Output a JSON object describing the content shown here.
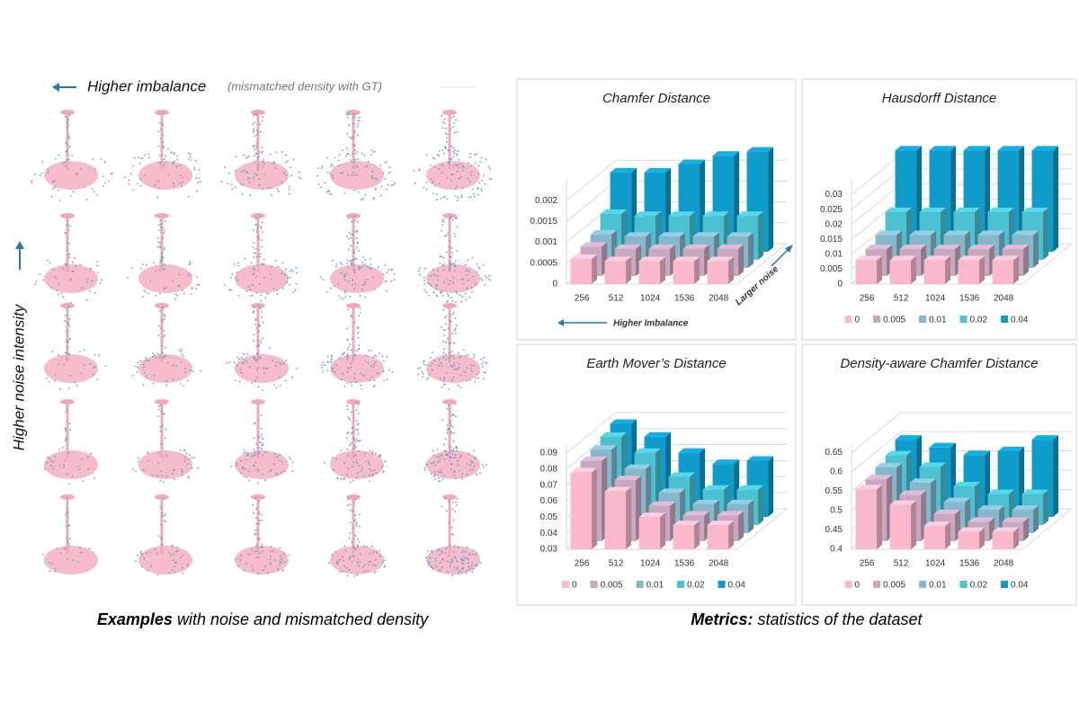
{
  "figure": {
    "imbalance_label": "Higher imbalance",
    "imbalance_note": "(mismatched density with GT)",
    "noise_label": "Higher noise intensity",
    "caption_bold": "Examples",
    "caption_rest": "with noise and mismatched density"
  },
  "metrics_caption": {
    "bold": "Metrics:",
    "rest": "statistics of the dataset"
  },
  "chart_data": [
    {
      "type": "bar",
      "title": "Chamfer Distance",
      "categories": [
        "256",
        "512",
        "1024",
        "1536",
        "2048"
      ],
      "series": [
        {
          "name": "0",
          "color": "#f9b8cb",
          "values": [
            0.0006,
            0.00055,
            0.00055,
            0.00055,
            0.00055
          ]
        },
        {
          "name": "0.005",
          "color": "#c9a8c2",
          "values": [
            0.0007,
            0.00065,
            0.00065,
            0.00065,
            0.00065
          ]
        },
        {
          "name": "0.01",
          "color": "#86b8cc",
          "values": [
            0.0008,
            0.00075,
            0.00075,
            0.00075,
            0.00075
          ]
        },
        {
          "name": "0.02",
          "color": "#4cc1d2",
          "values": [
            0.0011,
            0.00105,
            0.00105,
            0.00105,
            0.00105
          ]
        },
        {
          "name": "0.04",
          "color": "#0f9ccb",
          "values": [
            0.0019,
            0.0019,
            0.0021,
            0.0023,
            0.0024
          ]
        }
      ],
      "ylim": [
        0,
        0.0025
      ],
      "yticks": [
        0,
        0.0005,
        0.001,
        0.0015,
        0.002
      ],
      "grid": true,
      "x_annotation": "Higher Imbalance",
      "depth_annotation": "Larger noise"
    },
    {
      "type": "bar",
      "title": "Hausdorff Distance",
      "categories": [
        "256",
        "512",
        "1024",
        "1536",
        "2048"
      ],
      "series": [
        {
          "name": "0",
          "color": "#f9b8cb",
          "values": [
            0.008,
            0.008,
            0.008,
            0.008,
            0.008
          ]
        },
        {
          "name": "0.005",
          "color": "#c9a8c2",
          "values": [
            0.009,
            0.009,
            0.009,
            0.009,
            0.009
          ]
        },
        {
          "name": "0.01",
          "color": "#86b8cc",
          "values": [
            0.011,
            0.011,
            0.011,
            0.011,
            0.011
          ]
        },
        {
          "name": "0.02",
          "color": "#4cc1d2",
          "values": [
            0.016,
            0.016,
            0.016,
            0.016,
            0.016
          ]
        },
        {
          "name": "0.04",
          "color": "#0f9ccb",
          "values": [
            0.034,
            0.034,
            0.034,
            0.034,
            0.034
          ]
        }
      ],
      "ylim": [
        0,
        0.035
      ],
      "yticks": [
        0,
        0.005,
        0.01,
        0.015,
        0.02,
        0.025,
        0.03
      ],
      "grid": true,
      "legend": "bottom"
    },
    {
      "type": "bar",
      "title": "Earth Mover’s Distance",
      "categories": [
        "256",
        "512",
        "1024",
        "1536",
        "2048"
      ],
      "series": [
        {
          "name": "0",
          "color": "#f9b8cb",
          "values": [
            0.078,
            0.066,
            0.05,
            0.045,
            0.045
          ]
        },
        {
          "name": "0.005",
          "color": "#c9a8c2",
          "values": [
            0.08,
            0.068,
            0.052,
            0.046,
            0.046
          ]
        },
        {
          "name": "0.01",
          "color": "#86b8cc",
          "values": [
            0.082,
            0.07,
            0.055,
            0.048,
            0.048
          ]
        },
        {
          "name": "0.02",
          "color": "#4cc1d2",
          "values": [
            0.085,
            0.075,
            0.06,
            0.052,
            0.052
          ]
        },
        {
          "name": "0.04",
          "color": "#0f9ccb",
          "values": [
            0.088,
            0.08,
            0.07,
            0.063,
            0.065
          ]
        }
      ],
      "ylim": [
        0.03,
        0.095
      ],
      "yticks": [
        0.03,
        0.04,
        0.05,
        0.06,
        0.07,
        0.08,
        0.09
      ],
      "grid": true,
      "legend": "bottom"
    },
    {
      "type": "bar",
      "title": "Density-aware Chamfer Distance",
      "categories": [
        "256",
        "512",
        "1024",
        "1536",
        "2048"
      ],
      "series": [
        {
          "name": "0",
          "color": "#f9b8cb",
          "values": [
            0.555,
            0.515,
            0.46,
            0.445,
            0.445
          ]
        },
        {
          "name": "0.005",
          "color": "#c9a8c2",
          "values": [
            0.56,
            0.52,
            0.47,
            0.45,
            0.45
          ]
        },
        {
          "name": "0.01",
          "color": "#86b8cc",
          "values": [
            0.57,
            0.53,
            0.48,
            0.46,
            0.46
          ]
        },
        {
          "name": "0.02",
          "color": "#4cc1d2",
          "values": [
            0.58,
            0.55,
            0.5,
            0.48,
            0.48
          ]
        },
        {
          "name": "0.04",
          "color": "#0f9ccb",
          "values": [
            0.6,
            0.58,
            0.56,
            0.57,
            0.6
          ]
        }
      ],
      "ylim": [
        0.4,
        0.67
      ],
      "yticks": [
        0.4,
        0.45,
        0.5,
        0.55,
        0.6,
        0.65
      ],
      "grid": true,
      "legend": "bottom"
    }
  ]
}
